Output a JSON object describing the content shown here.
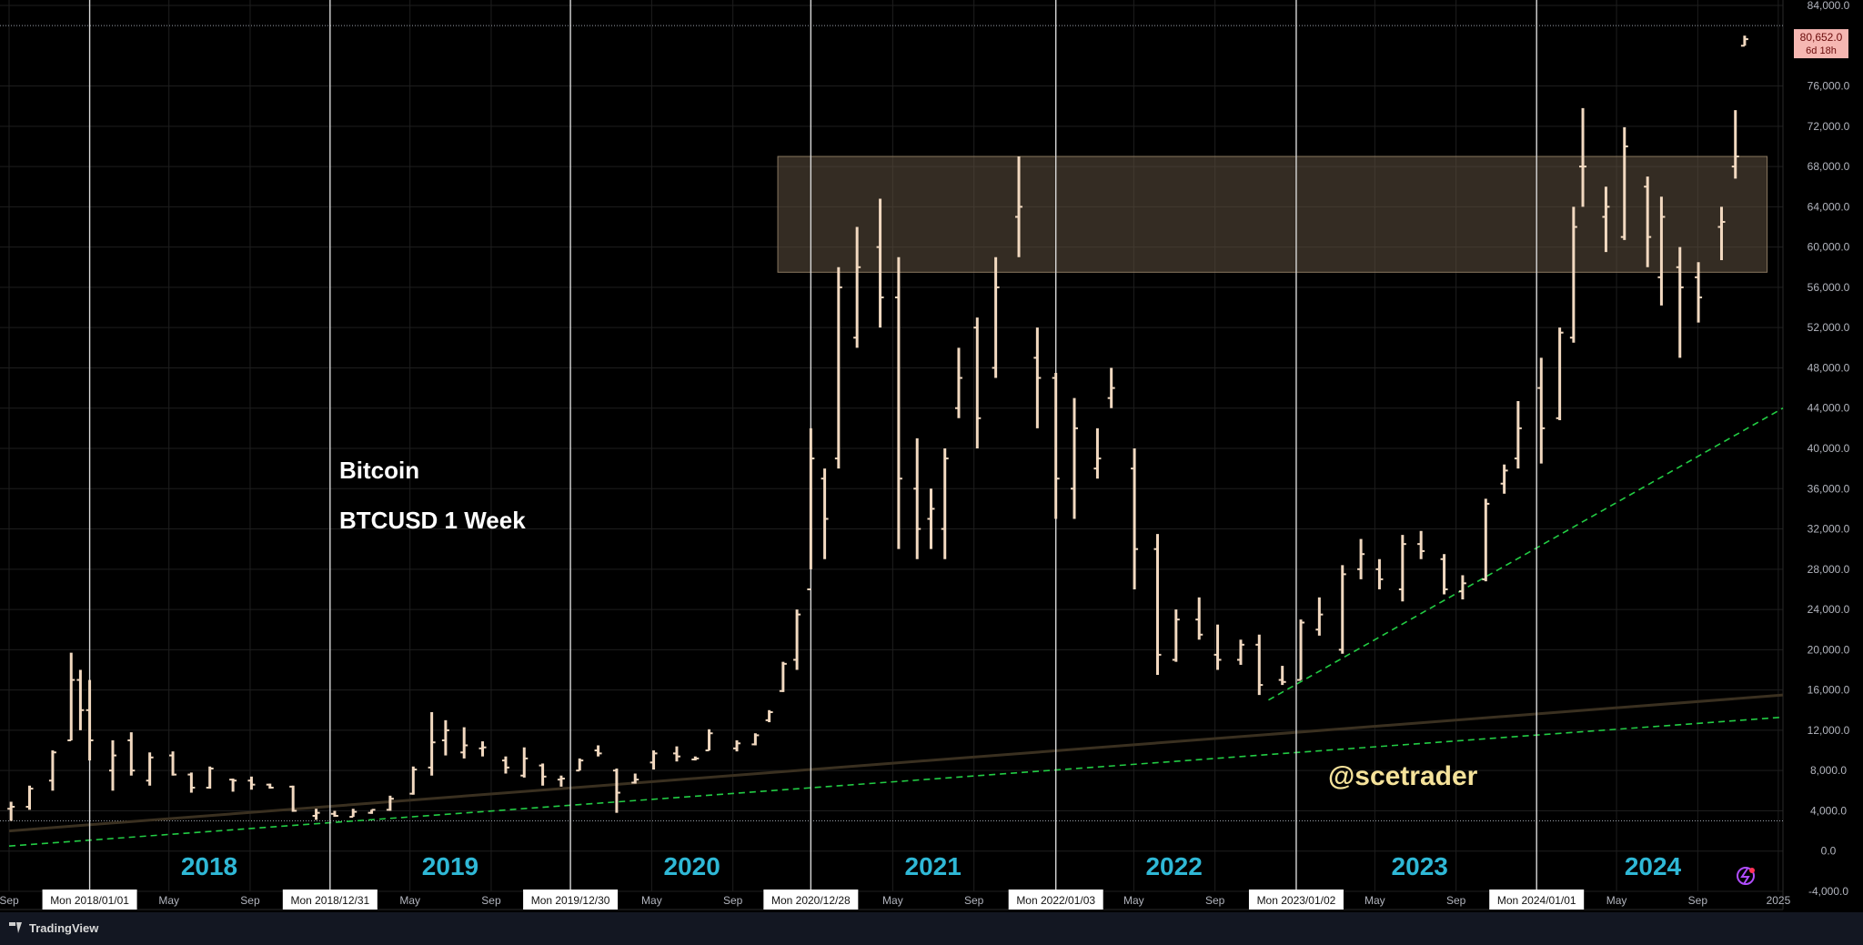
{
  "chart_data": {
    "type": "bar",
    "subtype": "ohlc-weekly",
    "title": "Bitcoin",
    "subtitle": "BTCUSD 1 Week",
    "watermark": "@scetrader",
    "brand": "TradingView",
    "ylim": [
      -4000,
      84000
    ],
    "yticks": [
      -4000,
      0,
      4000,
      8000,
      12000,
      16000,
      20000,
      24000,
      28000,
      32000,
      36000,
      40000,
      44000,
      48000,
      52000,
      56000,
      60000,
      64000,
      68000,
      72000,
      76000,
      84000
    ],
    "ytick_labels": [
      "-4,000.0",
      "0.0",
      "4,000.0",
      "8,000.0",
      "12,000.0",
      "16,000.0",
      "20,000.0",
      "24,000.0",
      "28,000.0",
      "32,000.0",
      "36,000.0",
      "40,000.0",
      "44,000.0",
      "48,000.0",
      "52,000.0",
      "56,000.0",
      "60,000.0",
      "64,000.0",
      "68,000.0",
      "72,000.0",
      "76,000.0",
      "84,000.0"
    ],
    "xlim": [
      "2017-09-01",
      "2025-01-08"
    ],
    "last_price": {
      "value": 80652,
      "label": "80,652.0",
      "countdown": "6d 18h"
    },
    "year_labels": [
      {
        "text": "2018",
        "date": "2018-07-01"
      },
      {
        "text": "2019",
        "date": "2019-07-01"
      },
      {
        "text": "2020",
        "date": "2020-07-01"
      },
      {
        "text": "2021",
        "date": "2021-07-01"
      },
      {
        "text": "2022",
        "date": "2022-07-01"
      },
      {
        "text": "2023",
        "date": "2023-07-08"
      },
      {
        "text": "2024",
        "date": "2024-06-25"
      }
    ],
    "year_markers": [
      {
        "date": "2018-01-01",
        "label": "Mon 2018/01/01"
      },
      {
        "date": "2018-12-31",
        "label": "Mon 2018/12/31"
      },
      {
        "date": "2019-12-30",
        "label": "Mon 2019/12/30"
      },
      {
        "date": "2020-12-28",
        "label": "Mon 2020/12/28"
      },
      {
        "date": "2022-01-03",
        "label": "Mon 2022/01/03"
      },
      {
        "date": "2023-01-02",
        "label": "Mon 2023/01/02"
      },
      {
        "date": "2024-01-01",
        "label": "Mon 2024/01/01"
      }
    ],
    "x_ticks": [
      {
        "text": "Sep",
        "date": "2017-09-01"
      },
      {
        "text": "May",
        "date": "2018-05-01"
      },
      {
        "text": "Sep",
        "date": "2018-09-01"
      },
      {
        "text": "May",
        "date": "2019-05-01"
      },
      {
        "text": "Sep",
        "date": "2019-09-01"
      },
      {
        "text": "May",
        "date": "2020-05-01"
      },
      {
        "text": "Sep",
        "date": "2020-09-01"
      },
      {
        "text": "May",
        "date": "2021-05-01"
      },
      {
        "text": "Sep",
        "date": "2021-09-01"
      },
      {
        "text": "May",
        "date": "2022-05-01"
      },
      {
        "text": "Sep",
        "date": "2022-09-01"
      },
      {
        "text": "May",
        "date": "2023-05-01"
      },
      {
        "text": "Sep",
        "date": "2023-09-01"
      },
      {
        "text": "May",
        "date": "2024-05-01"
      },
      {
        "text": "Sep",
        "date": "2024-09-01"
      },
      {
        "text": "2025",
        "date": "2025-01-01"
      }
    ],
    "resistance_zone": {
      "x_start": "2020-11-08",
      "x_end": "2024-12-15",
      "y_low": 57500,
      "y_high": 69000
    },
    "trendlines": [
      {
        "name": "long-term-support",
        "style": "dashed",
        "color": "#22cc44",
        "points": [
          [
            "2017-09-01",
            500
          ],
          [
            "2025-01-08",
            13300
          ]
        ]
      },
      {
        "name": "cycle-support",
        "style": "dashed",
        "color": "#22cc44",
        "points": [
          [
            "2022-11-21",
            15000
          ],
          [
            "2025-01-08",
            44000
          ]
        ]
      },
      {
        "name": "moving-average",
        "style": "solid",
        "color": "#3a3020",
        "points": [
          [
            "2017-09-01",
            2000
          ],
          [
            "2025-01-08",
            15500
          ]
        ]
      }
    ],
    "reference_lines": [
      3000,
      82000
    ],
    "series": [
      {
        "values": [
          [
            "2017-09-04",
            4200,
            4900,
            3000,
            4400
          ],
          [
            "2017-10-02",
            4400,
            6500,
            4100,
            6200
          ],
          [
            "2017-11-06",
            7000,
            10000,
            6000,
            9800
          ],
          [
            "2017-12-04",
            11000,
            19700,
            11000,
            17000
          ],
          [
            "2017-12-18",
            17000,
            18000,
            12000,
            14000
          ],
          [
            "2018-01-01",
            14000,
            17000,
            9000,
            11000
          ],
          [
            "2018-02-05",
            8000,
            11000,
            6000,
            9500
          ],
          [
            "2018-03-05",
            11000,
            11800,
            7500,
            8000
          ],
          [
            "2018-04-02",
            7000,
            9800,
            6500,
            9300
          ],
          [
            "2018-05-07",
            9500,
            9900,
            7500,
            7600
          ],
          [
            "2018-06-04",
            7600,
            7800,
            5800,
            6300
          ],
          [
            "2018-07-02",
            6300,
            8400,
            6200,
            8200
          ],
          [
            "2018-08-06",
            7100,
            7200,
            5900,
            7000
          ],
          [
            "2018-09-03",
            7000,
            7400,
            6100,
            6600
          ],
          [
            "2018-10-01",
            6600,
            6700,
            6200,
            6300
          ],
          [
            "2018-11-05",
            6400,
            6500,
            3900,
            4000
          ],
          [
            "2018-12-10",
            3500,
            4200,
            3100,
            3800
          ],
          [
            "2019-01-07",
            3700,
            4000,
            3400,
            3500
          ],
          [
            "2019-02-04",
            3400,
            4200,
            3400,
            3900
          ],
          [
            "2019-03-04",
            3800,
            4100,
            3700,
            4100
          ],
          [
            "2019-04-01",
            4100,
            5500,
            4000,
            5200
          ],
          [
            "2019-05-06",
            5700,
            8400,
            5600,
            8100
          ],
          [
            "2019-06-03",
            8300,
            13800,
            7500,
            10800
          ],
          [
            "2019-06-24",
            11000,
            13000,
            9500,
            12000
          ],
          [
            "2019-07-22",
            9800,
            12300,
            9200,
            10500
          ],
          [
            "2019-08-19",
            10200,
            10900,
            9400,
            10300
          ],
          [
            "2019-09-23",
            9000,
            9400,
            7700,
            8300
          ],
          [
            "2019-10-21",
            7500,
            10300,
            7300,
            9200
          ],
          [
            "2019-11-18",
            8500,
            8700,
            6500,
            7400
          ],
          [
            "2019-12-16",
            7100,
            7500,
            6400,
            7200
          ],
          [
            "2020-01-13",
            8000,
            9200,
            8000,
            9000
          ],
          [
            "2020-02-10",
            10000,
            10500,
            9400,
            9700
          ],
          [
            "2020-03-09",
            8000,
            8200,
            3800,
            5800
          ],
          [
            "2020-04-06",
            6800,
            7700,
            6700,
            7100
          ],
          [
            "2020-05-04",
            8800,
            10000,
            8100,
            9700
          ],
          [
            "2020-06-08",
            9700,
            10400,
            8900,
            9400
          ],
          [
            "2020-07-06",
            9100,
            9400,
            9000,
            9200
          ],
          [
            "2020-07-27",
            10000,
            12100,
            10000,
            11700
          ],
          [
            "2020-09-07",
            10200,
            11000,
            9900,
            10700
          ],
          [
            "2020-10-05",
            10600,
            11700,
            10500,
            11500
          ],
          [
            "2020-10-26",
            13000,
            14000,
            12800,
            13800
          ],
          [
            "2020-11-16",
            15900,
            18800,
            15800,
            18600
          ],
          [
            "2020-12-07",
            19000,
            24000,
            18000,
            23500
          ],
          [
            "2020-12-28",
            26000,
            42000,
            28000,
            39000
          ],
          [
            "2021-01-18",
            37000,
            38000,
            29000,
            33000
          ],
          [
            "2021-02-08",
            39000,
            58000,
            38000,
            56000
          ],
          [
            "2021-03-08",
            51000,
            62000,
            50000,
            58000
          ],
          [
            "2021-04-12",
            60000,
            64800,
            52000,
            55000
          ],
          [
            "2021-05-10",
            55000,
            59000,
            30000,
            37000
          ],
          [
            "2021-06-07",
            36000,
            41000,
            29000,
            32000
          ],
          [
            "2021-06-28",
            33000,
            36000,
            30000,
            34000
          ],
          [
            "2021-07-19",
            32000,
            40000,
            29000,
            39000
          ],
          [
            "2021-08-09",
            44000,
            50000,
            43000,
            47000
          ],
          [
            "2021-09-06",
            52000,
            53000,
            40000,
            43000
          ],
          [
            "2021-10-04",
            48000,
            59000,
            47000,
            56000
          ],
          [
            "2021-11-08",
            63000,
            69000,
            59000,
            64000
          ],
          [
            "2021-12-06",
            49000,
            52000,
            42000,
            47000
          ],
          [
            "2022-01-03",
            47000,
            47500,
            33000,
            37000
          ],
          [
            "2022-01-31",
            36000,
            45000,
            33000,
            42000
          ],
          [
            "2022-03-07",
            38000,
            42000,
            37000,
            39000
          ],
          [
            "2022-03-28",
            45000,
            48000,
            44000,
            46000
          ],
          [
            "2022-05-02",
            38000,
            40000,
            26000,
            30000
          ],
          [
            "2022-06-06",
            30000,
            31500,
            17500,
            19500
          ],
          [
            "2022-07-04",
            19000,
            24000,
            18800,
            23000
          ],
          [
            "2022-08-08",
            23000,
            25200,
            21000,
            21500
          ],
          [
            "2022-09-05",
            19500,
            22500,
            18000,
            19000
          ],
          [
            "2022-10-10",
            19000,
            21000,
            18500,
            20500
          ],
          [
            "2022-11-07",
            20500,
            21500,
            15500,
            16500
          ],
          [
            "2022-12-12",
            17000,
            18400,
            16500,
            16800
          ],
          [
            "2023-01-09",
            17000,
            23000,
            17000,
            22700
          ],
          [
            "2023-02-06",
            22000,
            25200,
            21400,
            23500
          ],
          [
            "2023-03-13",
            20000,
            28400,
            19600,
            27500
          ],
          [
            "2023-04-10",
            28000,
            31000,
            27000,
            29500
          ],
          [
            "2023-05-08",
            28000,
            29000,
            26000,
            27000
          ],
          [
            "2023-06-12",
            26000,
            31400,
            24800,
            30500
          ],
          [
            "2023-07-10",
            30500,
            31800,
            29000,
            29800
          ],
          [
            "2023-08-14",
            29000,
            29500,
            25500,
            26000
          ],
          [
            "2023-09-11",
            25800,
            27400,
            25000,
            26600
          ],
          [
            "2023-10-16",
            27000,
            35000,
            26800,
            34500
          ],
          [
            "2023-11-13",
            36500,
            38400,
            35500,
            37800
          ],
          [
            "2023-12-04",
            39000,
            44700,
            38000,
            42000
          ],
          [
            "2024-01-08",
            46000,
            49000,
            38500,
            42000
          ],
          [
            "2024-02-05",
            43000,
            52000,
            42800,
            51500
          ],
          [
            "2024-02-26",
            51000,
            64000,
            50500,
            62000
          ],
          [
            "2024-03-11",
            68000,
            73800,
            64000,
            68000
          ],
          [
            "2024-04-15",
            63000,
            66000,
            59500,
            64000
          ],
          [
            "2024-05-13",
            61000,
            71900,
            60700,
            70000
          ],
          [
            "2024-06-17",
            66000,
            67000,
            58000,
            61000
          ],
          [
            "2024-07-08",
            57000,
            65000,
            54200,
            63000
          ],
          [
            "2024-08-05",
            58000,
            60000,
            49000,
            56000
          ],
          [
            "2024-09-02",
            57000,
            58500,
            52500,
            55000
          ],
          [
            "2024-10-07",
            62000,
            64000,
            58700,
            62500
          ],
          [
            "2024-10-28",
            68000,
            73600,
            66800,
            69000
          ],
          [
            "2024-11-11",
            80000,
            81000,
            80000,
            80652
          ]
        ]
      }
    ]
  }
}
